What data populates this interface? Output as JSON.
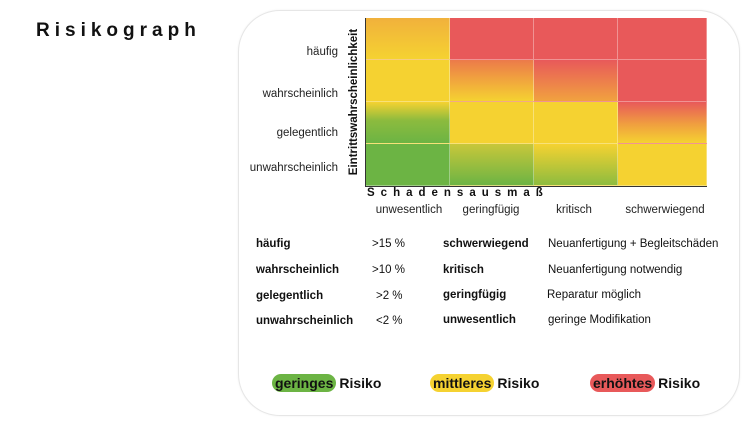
{
  "title": "Risikograph",
  "y_axis_title": "Eintrittswahrscheinlichkeit",
  "x_axis_title": "Schadensausmaß",
  "probabilities": [
    "häufig",
    "wahrscheinlich",
    "gelegentlich",
    "unwahrscheinlich"
  ],
  "severities": [
    "unwesentlich",
    "geringfügig",
    "kritisch",
    "schwerwiegend"
  ],
  "colors": {
    "green": "#6cb444",
    "yellow": "#f5d231",
    "red": "#e8595a"
  },
  "probability_legend": [
    {
      "term": "häufig",
      "value": ">15 %"
    },
    {
      "term": "wahrscheinlich",
      "value": ">10 %"
    },
    {
      "term": "gelegentlich",
      "value": ">2 %"
    },
    {
      "term": "unwahrscheinlich",
      "value": "<2 %"
    }
  ],
  "severity_legend": [
    {
      "term": "schwerwiegend",
      "desc": "Neuanfertigung + Begleitschäden"
    },
    {
      "term": "kritisch",
      "desc": "Neuanfertigung notwendig"
    },
    {
      "term": "geringfügig",
      "desc": "Reparatur möglich"
    },
    {
      "term": "unwesentlich",
      "desc": "geringe Modifikation"
    }
  ],
  "risk_levels": [
    {
      "level": "geringes",
      "suffix": "Risiko",
      "color": "#6cb444"
    },
    {
      "level": "mittleres",
      "suffix": "Risiko",
      "color": "#f5d231"
    },
    {
      "level": "erhöhtes",
      "suffix": "Risiko",
      "color": "#e8595a"
    }
  ]
}
